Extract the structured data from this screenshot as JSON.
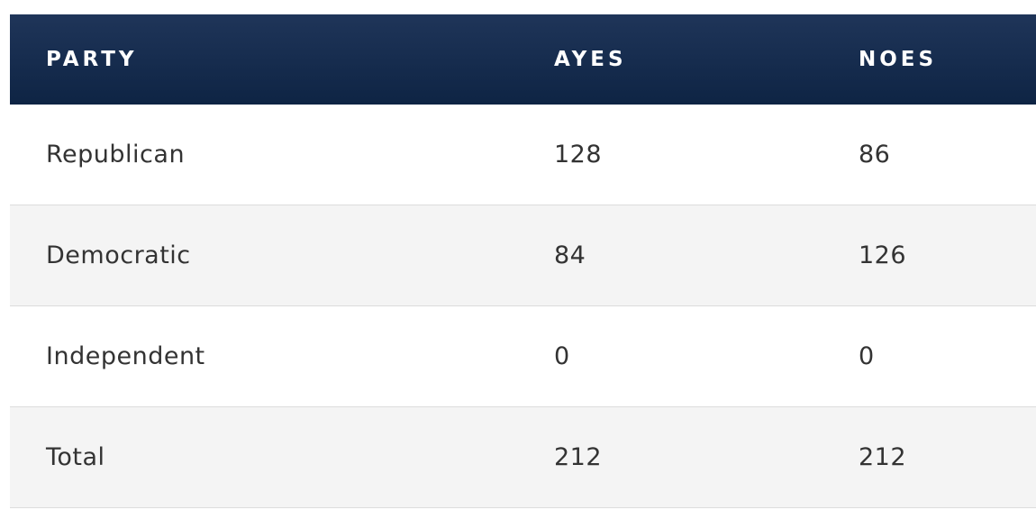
{
  "table": {
    "header": [
      "PARTY",
      "AYES",
      "NOES"
    ],
    "rows": [
      [
        "Republican",
        128,
        86
      ],
      [
        "Democratic",
        84,
        126
      ],
      [
        "Independent",
        0,
        0
      ],
      [
        "Total",
        212,
        212
      ]
    ]
  }
}
